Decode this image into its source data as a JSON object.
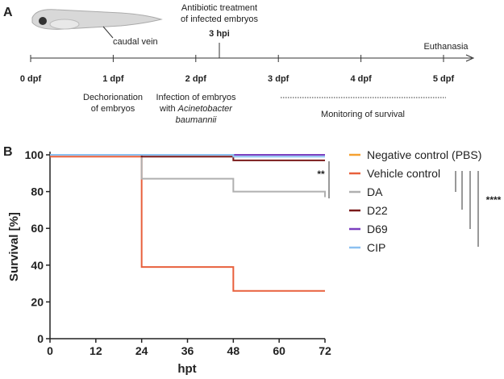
{
  "panel_labels": [
    "A",
    "B"
  ],
  "timeline": {
    "caudal_vein": "caudal vein",
    "treatment": [
      "Antibiotic treatment",
      "of infected embryos"
    ],
    "treatment_time": "3 hpi",
    "end": "Euthanasia",
    "days": [
      "0 dpf",
      "1 dpf",
      "2 dpf",
      "3 dpf",
      "4 dpf",
      "5 dpf"
    ],
    "dechorionation": [
      "Dechorionation",
      "of embryos"
    ],
    "infection": [
      "Infection of embryos",
      "with",
      "Acinetobacter",
      "baumannii"
    ],
    "monitoring": "Monitoring of survival"
  },
  "chart_data": {
    "type": "step",
    "xlabel": "hpt",
    "ylabel": "Survival [%]",
    "x": [
      0,
      24,
      48,
      72
    ],
    "xlim": [
      0,
      72
    ],
    "xticks": [
      0,
      12,
      24,
      36,
      48,
      60,
      72
    ],
    "ylim": [
      0,
      100
    ],
    "yticks": [
      0,
      20,
      40,
      60,
      80,
      100
    ],
    "series": [
      {
        "name": "Negative control (PBS)",
        "color": "#f5a030",
        "values": [
          100,
          100,
          100,
          100
        ]
      },
      {
        "name": "Vehicle control",
        "color": "#e8603c",
        "values": [
          99,
          39,
          26,
          26
        ]
      },
      {
        "name": "DA",
        "color": "#b0b0b0",
        "values": [
          100,
          87,
          80,
          77
        ]
      },
      {
        "name": "D22",
        "color": "#7a1a1a",
        "values": [
          100,
          99,
          97,
          97
        ]
      },
      {
        "name": "D69",
        "color": "#7b3fbf",
        "values": [
          100,
          100,
          100,
          100
        ]
      },
      {
        "name": "CIP",
        "color": "#8cc0f0",
        "values": [
          100,
          100,
          99,
          99
        ]
      }
    ],
    "annotations": [
      "**",
      "****"
    ]
  }
}
